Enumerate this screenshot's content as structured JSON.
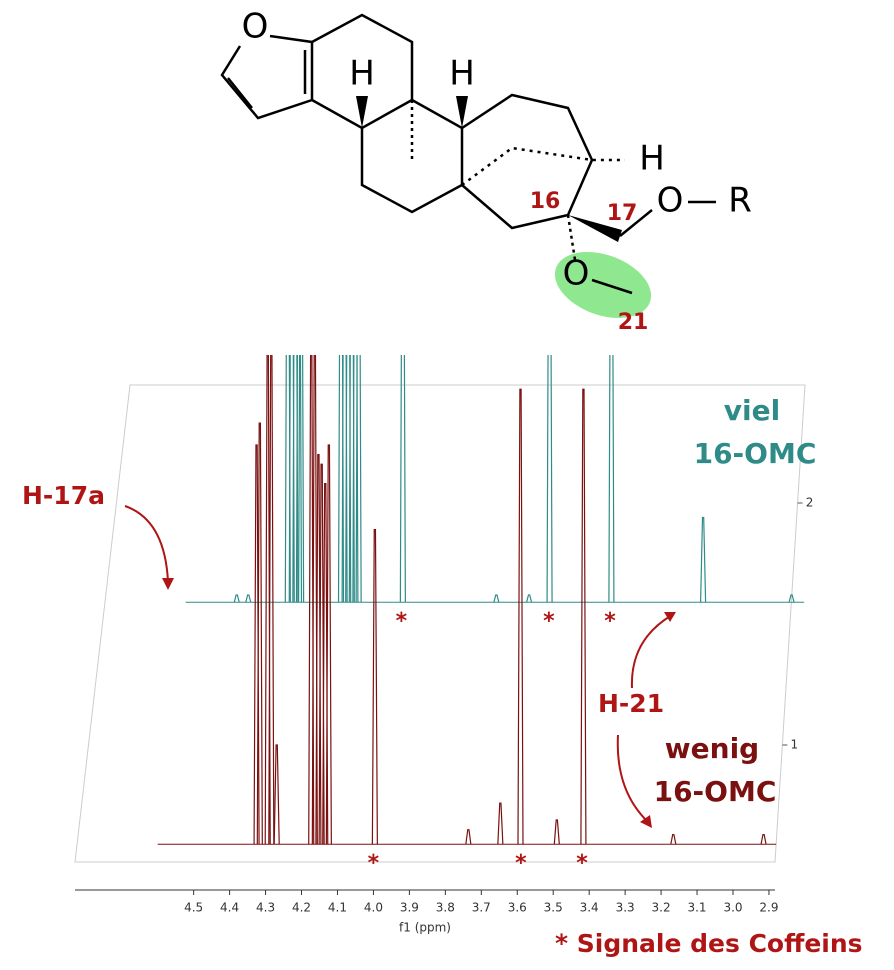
{
  "structure": {
    "atoms": [
      "O",
      "H",
      "H",
      "H",
      "O",
      "R",
      "O"
    ],
    "locants": [
      "16",
      "17",
      "21"
    ]
  },
  "chart_data": {
    "type": "nmr-stack",
    "xlabel": "f1 (ppm)",
    "xlim": [
      4.6,
      2.88
    ],
    "xticks": [
      4.5,
      4.4,
      4.3,
      4.2,
      4.1,
      {
        "value": 4,
        "label": "4.0"
      },
      3.9,
      3.8,
      3.7,
      3.6,
      3.5,
      3.4,
      3.3,
      3.2,
      3.1,
      {
        "value": 3,
        "label": "3.0"
      },
      2.9
    ],
    "yticks": [
      1,
      2
    ],
    "marker": "*",
    "caffeine_ppm": [
      4.0,
      3.59,
      3.42
    ],
    "series": [
      {
        "name": [
          "viel",
          "16-OMC"
        ],
        "color": "#2e8b87",
        "baseline": 1.59,
        "peaks": [
          [
            4.458,
            0.03
          ],
          [
            4.426,
            0.03
          ],
          [
            4.316,
            2.0
          ],
          [
            4.305,
            2.0
          ],
          [
            4.295,
            2.0
          ],
          [
            4.285,
            2.0
          ],
          [
            4.279,
            2.0
          ],
          [
            4.168,
            2.0
          ],
          [
            4.158,
            2.0
          ],
          [
            4.148,
            2.0
          ],
          [
            4.138,
            2.0
          ],
          [
            4.128,
            2.0
          ],
          [
            4.119,
            2.0
          ],
          [
            3.996,
            2.0
          ],
          [
            3.736,
            0.03
          ],
          [
            3.645,
            0.03
          ],
          [
            3.588,
            2.0
          ],
          [
            3.416,
            2.0
          ],
          [
            3.161,
            0.35
          ],
          [
            2.915,
            0.03
          ]
        ]
      },
      {
        "name": [
          "wenig",
          "16-OMC"
        ],
        "color": "#7a1010",
        "baseline": 0.59,
        "peaks": [
          [
            4.325,
            1.65
          ],
          [
            4.316,
            1.74
          ],
          [
            4.294,
            2.07
          ],
          [
            4.284,
            2.07
          ],
          [
            4.269,
            0.41
          ],
          [
            4.173,
            2.07
          ],
          [
            4.163,
            2.07
          ],
          [
            4.153,
            1.61
          ],
          [
            4.144,
            1.57
          ],
          [
            4.134,
            1.49
          ],
          [
            4.124,
            1.65
          ],
          [
            3.996,
            1.3
          ],
          [
            3.736,
            0.06
          ],
          [
            3.647,
            0.17
          ],
          [
            3.591,
            1.88
          ],
          [
            3.49,
            0.1
          ],
          [
            3.416,
            1.88
          ],
          [
            3.166,
            0.04
          ],
          [
            2.915,
            0.04
          ]
        ]
      }
    ],
    "annotations": [
      "H-17a",
      "H-21",
      "* Signale des Coffeins"
    ]
  }
}
